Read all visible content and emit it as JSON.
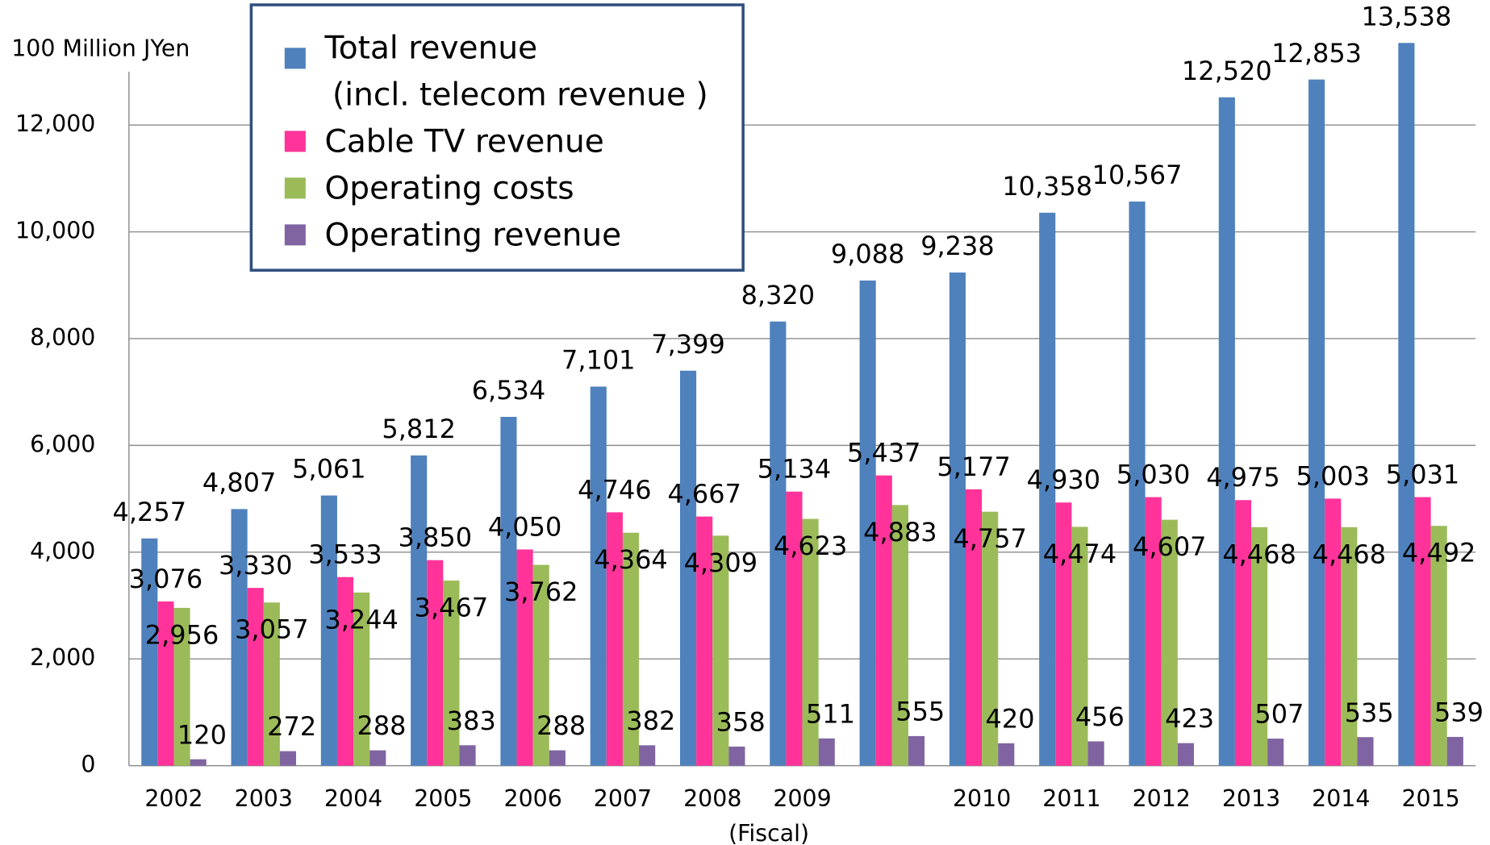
{
  "chart_data": {
    "type": "bar",
    "y_label": "100 Million JYen",
    "x_label": "(Fiscal)",
    "categories": [
      "2002",
      "2003",
      "2004",
      "2005",
      "2006",
      "2007",
      "2008",
      "2009",
      null,
      "2010",
      "2011",
      "2012",
      "2013",
      "2014",
      "2015"
    ],
    "series": [
      {
        "name": "Total revenue\n(incl. telecom revenue )",
        "color": "#4f81bd",
        "values": [
          4257,
          4807,
          5061,
          5812,
          6534,
          7101,
          7399,
          8320,
          9088,
          9238,
          10358,
          10567,
          12520,
          12853,
          13538
        ],
        "value_labels": [
          "4,257",
          "4,807",
          "5,061",
          "5,812",
          "6,534",
          "7,101",
          "7,399",
          "8,320",
          "9,088",
          "9,238",
          "10,358",
          "10,567",
          "12,520",
          "12,853",
          "13,538"
        ]
      },
      {
        "name": "Cable TV revenue",
        "color": "#ff3399",
        "values": [
          3076,
          3330,
          3533,
          3850,
          4050,
          4746,
          4667,
          5134,
          5437,
          5177,
          4930,
          5030,
          4975,
          5003,
          5031
        ],
        "value_labels": [
          "3,076",
          "3,330",
          "3,533",
          "3,850",
          "4,050",
          "4,746",
          "4,667",
          "5,134",
          "5,437",
          "5,177",
          "4,930",
          "5,030",
          "4,975",
          "5,003",
          "5,031"
        ]
      },
      {
        "name": "Operating costs",
        "color": "#9bbb59",
        "values": [
          2956,
          3057,
          3244,
          3467,
          3762,
          4364,
          4309,
          4623,
          4883,
          4757,
          4474,
          4607,
          4468,
          4468,
          4492
        ],
        "value_labels": [
          "2,956",
          "3,057",
          "3,244",
          "3,467",
          "3,762",
          "4,364",
          "4,309",
          "4,623",
          "4,883",
          "4,757",
          "4,474",
          "4,607",
          "4,468",
          "4,468",
          "4,492"
        ]
      },
      {
        "name": "Operating revenue",
        "color": "#8064a2",
        "values": [
          120,
          272,
          288,
          383,
          288,
          382,
          358,
          511,
          555,
          420,
          456,
          423,
          507,
          535,
          539
        ]
      }
    ],
    "ylim": [
      0,
      13000
    ],
    "yticks": [
      0,
      {
        "value": 2000,
        "label": "2,000"
      },
      {
        "value": 4000,
        "label": "4,000"
      },
      {
        "value": 6000,
        "label": "6,000"
      },
      {
        "value": 8000,
        "label": "8,000"
      },
      {
        "value": 10000,
        "label": "10,000"
      },
      {
        "value": 12000,
        "label": "12,000"
      }
    ],
    "grid": true,
    "legend": "top-left"
  }
}
